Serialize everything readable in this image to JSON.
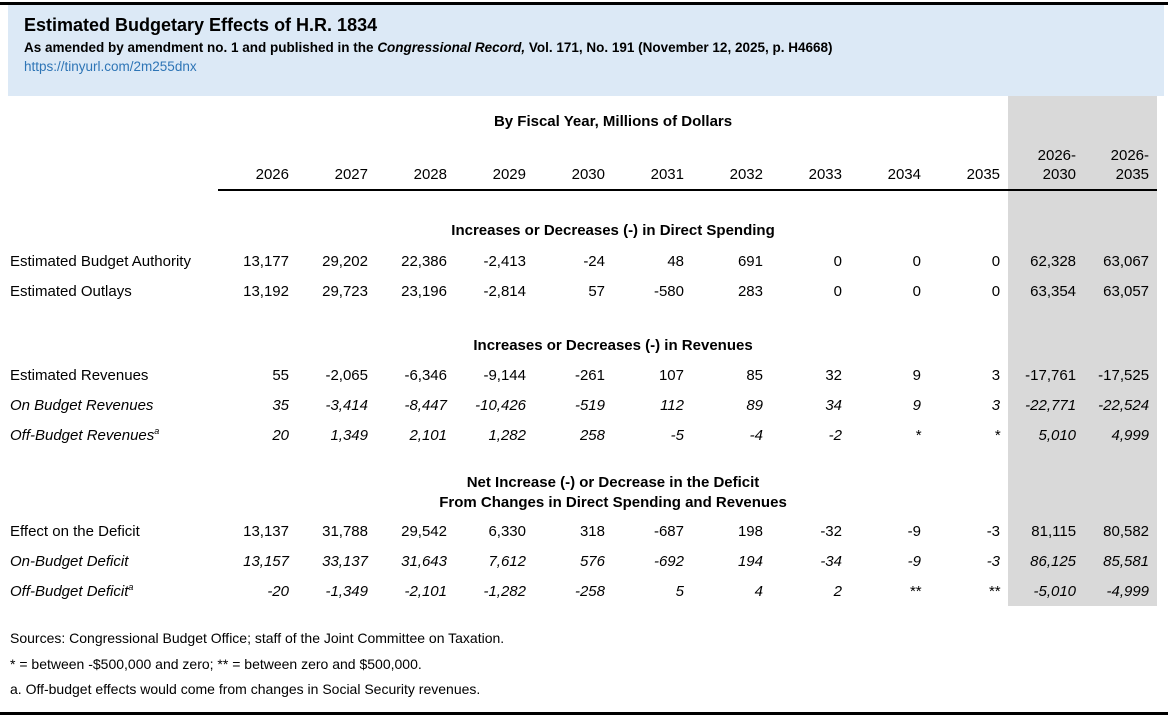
{
  "page": {
    "title": "Estimated Budgetary Effects of H.R. 1834",
    "subtitle_prefix": "As amended by amendment no. 1 and published in the ",
    "subtitle_italic": "Congressional Record,",
    "subtitle_suffix": " Vol. 171, No. 191 (November 12, 2025, p. H4668)",
    "link": "https://tinyurl.com/2m255dnx"
  },
  "colors": {
    "header_bg": "#dce9f6",
    "link_blue": "#2e75b6",
    "totals_bg": "#d9d9d9"
  },
  "table": {
    "unit_header": "By Fiscal Year, Millions of Dollars",
    "year_columns": [
      "2026",
      "2027",
      "2028",
      "2029",
      "2030",
      "2031",
      "2032",
      "2033",
      "2034",
      "2035"
    ],
    "total_columns": [
      [
        "2026-",
        "2030"
      ],
      [
        "2026-",
        "2035"
      ]
    ],
    "sections": [
      {
        "header_lines": [
          "Increases or Decreases (-) in Direct Spending"
        ],
        "rows": [
          {
            "label": "Estimated Budget Authority",
            "italic": false,
            "sup": "",
            "values": [
              "13,177",
              "29,202",
              "22,386",
              "-2,413",
              "-24",
              "48",
              "691",
              "0",
              "0",
              "0",
              "62,328",
              "63,067"
            ]
          },
          {
            "label": "Estimated Outlays",
            "italic": false,
            "sup": "",
            "values": [
              "13,192",
              "29,723",
              "23,196",
              "-2,814",
              "57",
              "-580",
              "283",
              "0",
              "0",
              "0",
              "63,354",
              "63,057"
            ]
          }
        ]
      },
      {
        "header_lines": [
          "Increases or Decreases (-) in Revenues"
        ],
        "rows": [
          {
            "label": "Estimated Revenues",
            "italic": false,
            "sup": "",
            "values": [
              "55",
              "-2,065",
              "-6,346",
              "-9,144",
              "-261",
              "107",
              "85",
              "32",
              "9",
              "3",
              "-17,761",
              "-17,525"
            ]
          },
          {
            "label": "On Budget Revenues",
            "italic": true,
            "sup": "",
            "values": [
              "35",
              "-3,414",
              "-8,447",
              "-10,426",
              "-519",
              "112",
              "89",
              "34",
              "9",
              "3",
              "-22,771",
              "-22,524"
            ]
          },
          {
            "label": "Off-Budget Revenues",
            "italic": true,
            "sup": "a",
            "values": [
              "20",
              "1,349",
              "2,101",
              "1,282",
              "258",
              "-5",
              "-4",
              "-2",
              "*",
              "*",
              "5,010",
              "4,999"
            ]
          }
        ]
      },
      {
        "header_lines": [
          "Net Increase (-) or Decrease in the Deficit",
          "From Changes in Direct Spending and Revenues"
        ],
        "rows": [
          {
            "label": "Effect on the Deficit",
            "italic": false,
            "sup": "",
            "values": [
              "13,137",
              "31,788",
              "29,542",
              "6,330",
              "318",
              "-687",
              "198",
              "-32",
              "-9",
              "-3",
              "81,115",
              "80,582"
            ]
          },
          {
            "label": "On-Budget Deficit",
            "italic": true,
            "sup": "",
            "values": [
              "13,157",
              "33,137",
              "31,643",
              "7,612",
              "576",
              "-692",
              "194",
              "-34",
              "-9",
              "-3",
              "86,125",
              "85,581"
            ]
          },
          {
            "label": "Off-Budget Deficit",
            "italic": true,
            "sup": "a",
            "values": [
              "-20",
              "-1,349",
              "-2,101",
              "-1,282",
              "-258",
              "5",
              "4",
              "2",
              "**",
              "**",
              "-5,010",
              "-4,999"
            ]
          }
        ]
      }
    ]
  },
  "footnotes": [
    "Sources: Congressional Budget Office; staff of the Joint Committee on Taxation.",
    "* = between -$500,000 and zero; ** = between zero and $500,000.",
    "a.  Off-budget effects would come from changes in Social Security revenues."
  ]
}
